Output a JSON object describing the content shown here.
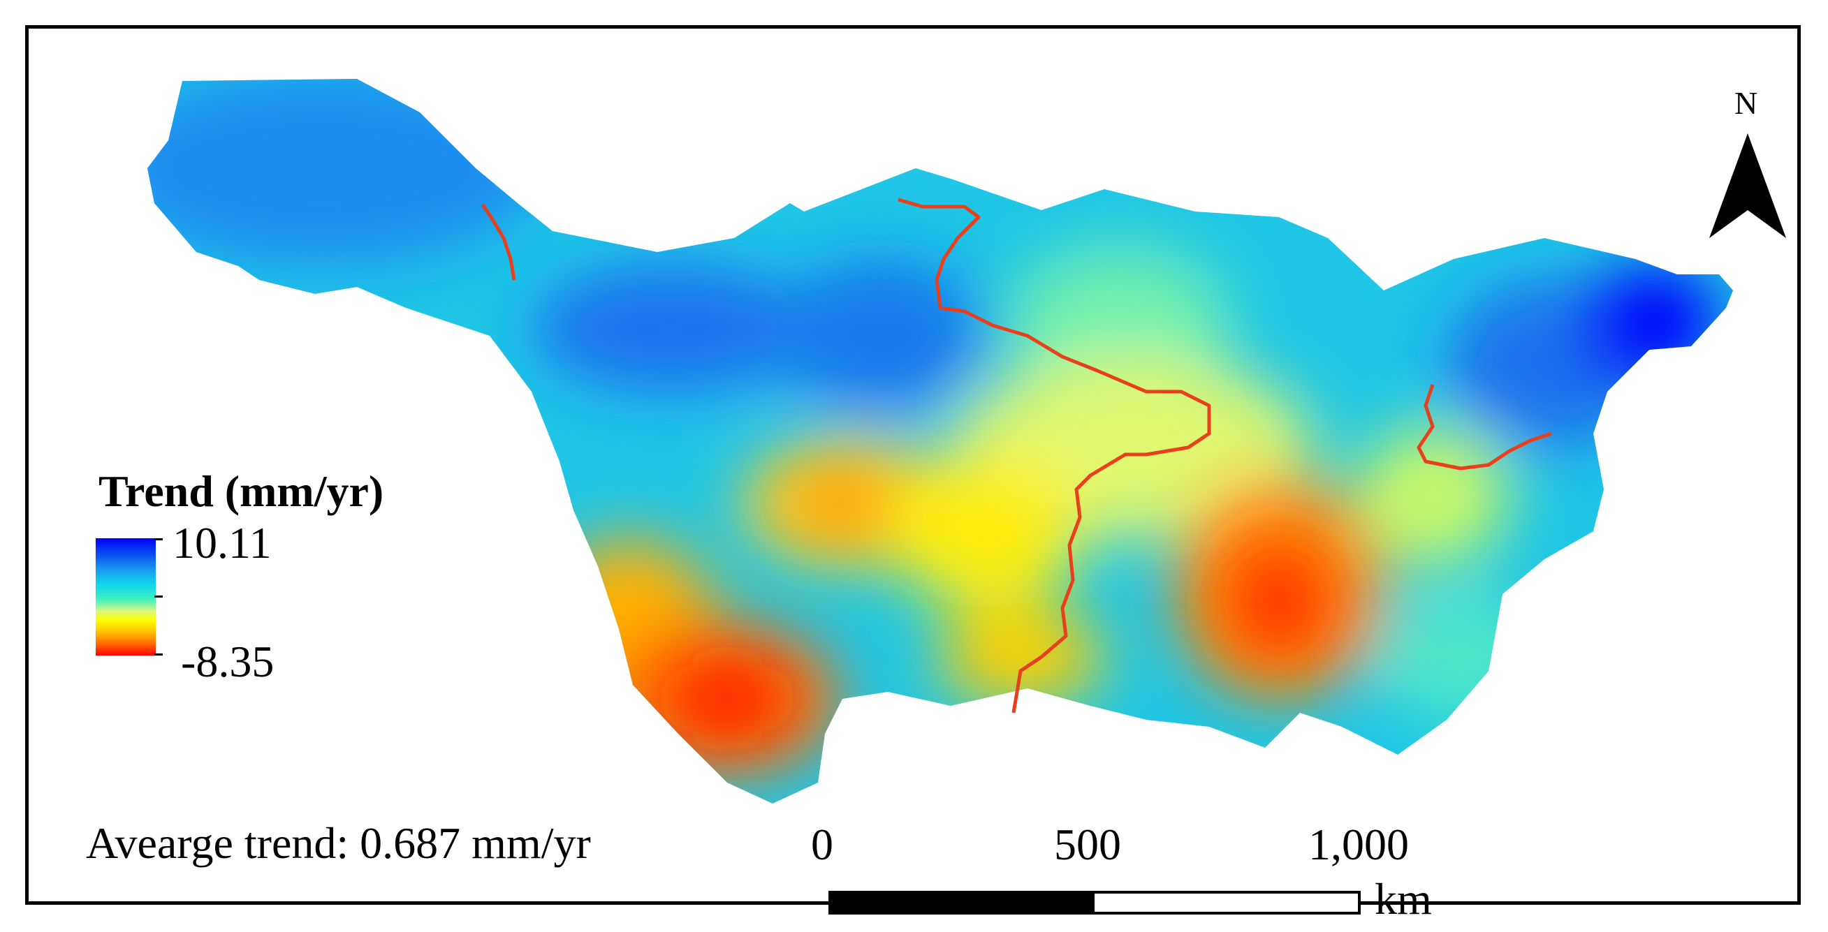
{
  "legend": {
    "title": "Trend (mm/yr)",
    "max_label": "10.11",
    "min_label": "-8.35",
    "max_value": 10.11,
    "min_value": -8.35,
    "colors": [
      "#0000ff",
      "#1aa0f0",
      "#10d8ea",
      "#40f0c0",
      "#ffff00",
      "#ff9000",
      "#ff0000"
    ]
  },
  "average_trend_text": "Avearge trend: 0.687 mm/yr",
  "scale_bar": {
    "labels": [
      "0",
      "500",
      "1,000"
    ],
    "unit": "km"
  },
  "north_arrow": {
    "label": "N"
  },
  "river_color": "#e8401c"
}
